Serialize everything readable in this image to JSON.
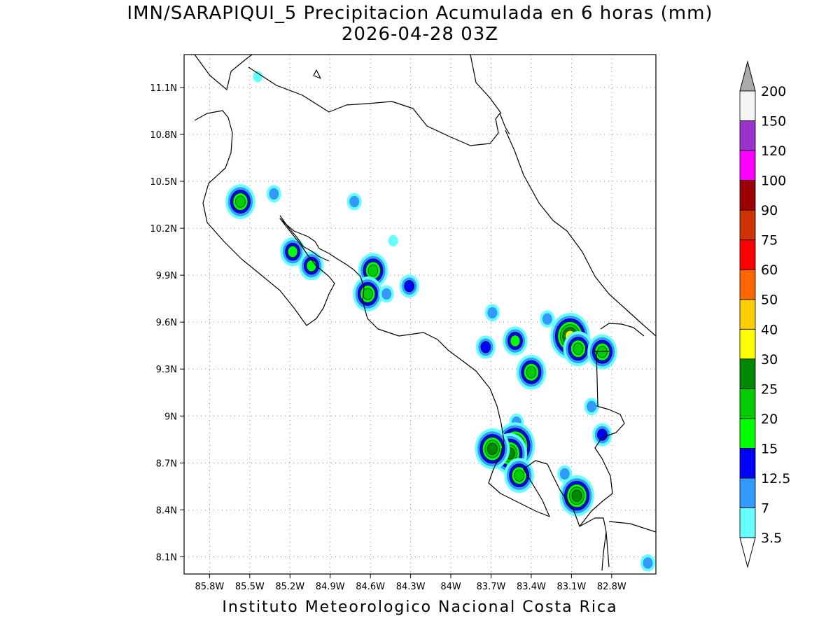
{
  "title": {
    "line1": "IMN/SARAPIQUI_5 Precipitacion Acumulada en 6 horas (mm)",
    "line2": "2026-04-28 03Z"
  },
  "footer": "Instituto Meteorologico Nacional Costa Rica",
  "axes": {
    "lon_ticks": [
      "85.8W",
      "85.5W",
      "85.2W",
      "84.9W",
      "84.6W",
      "84.3W",
      "84W",
      "83.7W",
      "83.4W",
      "83.1W",
      "82.8W"
    ],
    "lat_ticks": [
      "11.1N",
      "10.8N",
      "10.5N",
      "10.2N",
      "9.9N",
      "9.6N",
      "9.3N",
      "9N",
      "8.7N",
      "8.4N",
      "8.1N"
    ],
    "lon_values": [
      -85.8,
      -85.5,
      -85.2,
      -84.9,
      -84.6,
      -84.3,
      -84.0,
      -83.7,
      -83.4,
      -83.1,
      -82.8
    ],
    "lat_values": [
      11.1,
      10.8,
      10.5,
      10.2,
      9.9,
      9.6,
      9.3,
      9.0,
      8.7,
      8.4,
      8.1
    ],
    "lon_range": [
      -85.99,
      -82.47
    ],
    "lat_range": [
      7.99,
      11.31
    ],
    "grid": true
  },
  "legend": {
    "levels": [
      "3.5",
      "7",
      "12.5",
      "15",
      "20",
      "25",
      "30",
      "40",
      "50",
      "60",
      "75",
      "90",
      "100",
      "120",
      "150",
      "200"
    ],
    "colors": [
      "#ffffff",
      "#66ffff",
      "#3399ff",
      "#0000ff",
      "#00ff00",
      "#00cc00",
      "#008800",
      "#ffff00",
      "#ffcc00",
      "#ff6600",
      "#ff0000",
      "#cc3300",
      "#990000",
      "#ff00ff",
      "#9933cc",
      "#f5f5f5"
    ],
    "over_color": "#aaaaaa",
    "under_color": "#ffffff"
  },
  "cells": [
    {
      "lon": -85.57,
      "lat": 10.37,
      "max": 25
    },
    {
      "lon": -85.18,
      "lat": 10.05,
      "max": 20
    },
    {
      "lon": -85.04,
      "lat": 9.96,
      "max": 20
    },
    {
      "lon": -84.58,
      "lat": 9.93,
      "max": 25
    },
    {
      "lon": -84.62,
      "lat": 9.78,
      "max": 25
    },
    {
      "lon": -84.31,
      "lat": 9.83,
      "max": 15
    },
    {
      "lon": -84.48,
      "lat": 9.78,
      "max": 12.5
    },
    {
      "lon": -84.72,
      "lat": 10.37,
      "max": 12.5
    },
    {
      "lon": -84.43,
      "lat": 10.12,
      "max": 7
    },
    {
      "lon": -85.32,
      "lat": 10.42,
      "max": 12.5
    },
    {
      "lon": -83.69,
      "lat": 9.66,
      "max": 12.5
    },
    {
      "lon": -83.74,
      "lat": 9.44,
      "max": 15
    },
    {
      "lon": -83.52,
      "lat": 9.48,
      "max": 20
    },
    {
      "lon": -83.4,
      "lat": 9.28,
      "max": 25
    },
    {
      "lon": -83.28,
      "lat": 9.62,
      "max": 12.5
    },
    {
      "lon": -83.11,
      "lat": 9.51,
      "max": 40
    },
    {
      "lon": -83.05,
      "lat": 9.43,
      "max": 25
    },
    {
      "lon": -82.87,
      "lat": 9.41,
      "max": 25
    },
    {
      "lon": -82.95,
      "lat": 9.06,
      "max": 12.5
    },
    {
      "lon": -82.87,
      "lat": 8.88,
      "max": 15
    },
    {
      "lon": -83.51,
      "lat": 8.96,
      "max": 12.5
    },
    {
      "lon": -83.52,
      "lat": 8.81,
      "max": 40
    },
    {
      "lon": -83.56,
      "lat": 8.76,
      "max": 30
    },
    {
      "lon": -83.69,
      "lat": 8.79,
      "max": 30
    },
    {
      "lon": -83.49,
      "lat": 8.62,
      "max": 25
    },
    {
      "lon": -83.06,
      "lat": 8.49,
      "max": 30
    },
    {
      "lon": -83.15,
      "lat": 8.63,
      "max": 12.5
    },
    {
      "lon": -82.53,
      "lat": 8.06,
      "max": 12.5
    },
    {
      "lon": -85.44,
      "lat": 11.17,
      "max": 7
    }
  ]
}
